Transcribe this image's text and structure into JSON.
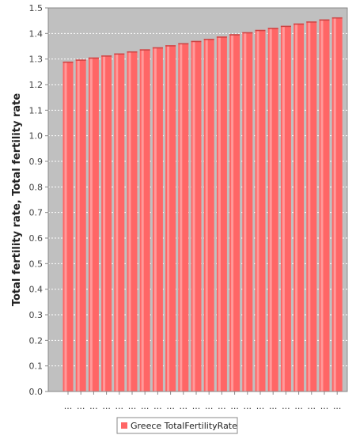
{
  "chart_data": {
    "type": "bar",
    "title": "",
    "xlabel": "",
    "ylabel": "Total fertility rate, Total fertility rate",
    "ylim": [
      0,
      1.5
    ],
    "yticks": [
      0.0,
      0.1,
      0.2,
      0.3,
      0.4,
      0.5,
      0.6,
      0.7,
      0.8,
      0.9,
      1.0,
      1.1,
      1.2,
      1.3,
      1.4,
      1.5
    ],
    "grid": true,
    "legend_position": "bottom",
    "categories": [
      "...",
      "...",
      "...",
      "...",
      "...",
      "...",
      "...",
      "...",
      "...",
      "...",
      "...",
      "...",
      "...",
      "...",
      "...",
      "...",
      "...",
      "...",
      "...",
      "...",
      "...",
      "..."
    ],
    "series": [
      {
        "name": "Greece TotalFertilityRate",
        "color": "#ff6666",
        "values": [
          1.29,
          1.298,
          1.306,
          1.314,
          1.322,
          1.33,
          1.338,
          1.346,
          1.354,
          1.362,
          1.371,
          1.379,
          1.388,
          1.397,
          1.405,
          1.414,
          1.422,
          1.43,
          1.439,
          1.447,
          1.455,
          1.463
        ]
      }
    ],
    "plot_background": "#c0c0c0",
    "grid_color": "#ffffff"
  }
}
